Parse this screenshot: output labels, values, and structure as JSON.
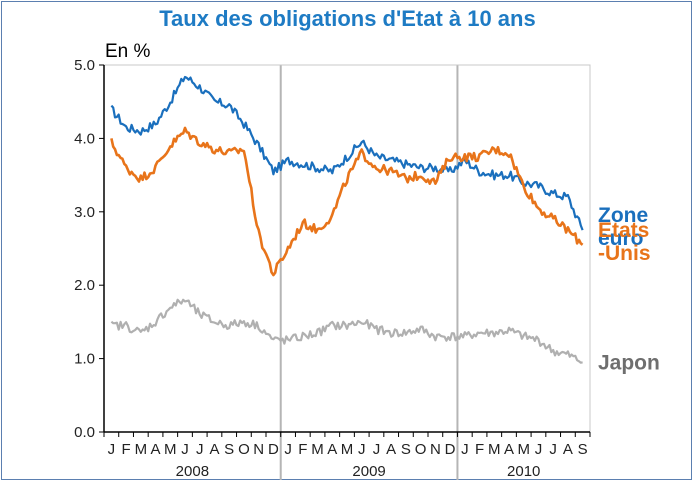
{
  "chart_data": {
    "type": "line",
    "title": "Taux des obligations d'Etat à 10 ans",
    "ylabel": "En %",
    "ylim": [
      0,
      5
    ],
    "yticks": [
      "0.0",
      "1.0",
      "2.0",
      "3.0",
      "4.0",
      "5.0"
    ],
    "grid": "vertical-year-separators",
    "month_labels": [
      "J",
      "F",
      "M",
      "A",
      "M",
      "J",
      "J",
      "A",
      "S",
      "O",
      "N",
      "D",
      "J",
      "F",
      "M",
      "A",
      "M",
      "J",
      "J",
      "A",
      "S",
      "O",
      "N",
      "D",
      "J",
      "F",
      "M",
      "A",
      "M",
      "J",
      "J",
      "A",
      "S"
    ],
    "year_labels": [
      "2008",
      "2009",
      "2010"
    ],
    "series": [
      {
        "name": "Zone euro",
        "label_lines": [
          "Zone",
          "euro"
        ],
        "color": "#1a6fbd",
        "values": [
          4.4,
          4.15,
          4.1,
          4.2,
          4.5,
          4.85,
          4.7,
          4.5,
          4.45,
          4.2,
          3.9,
          3.55,
          3.7,
          3.65,
          3.6,
          3.55,
          3.75,
          3.95,
          3.75,
          3.7,
          3.65,
          3.6,
          3.6,
          3.55,
          3.7,
          3.55,
          3.5,
          3.5,
          3.4,
          3.35,
          3.25,
          3.2,
          2.75
        ]
      },
      {
        "name": "Etats-Unis",
        "label_lines": [
          "Etats",
          "-Unis"
        ],
        "color": "#e8741a",
        "values": [
          3.95,
          3.6,
          3.45,
          3.6,
          3.9,
          4.1,
          3.95,
          3.85,
          3.8,
          3.85,
          2.7,
          2.15,
          2.5,
          2.85,
          2.75,
          2.95,
          3.45,
          3.8,
          3.6,
          3.55,
          3.45,
          3.5,
          3.4,
          3.75,
          3.75,
          3.75,
          3.85,
          3.8,
          3.35,
          3.05,
          2.9,
          2.75,
          2.55
        ]
      },
      {
        "name": "Japon",
        "label_lines": [
          "Japon"
        ],
        "color": "#b0b0b0",
        "label_color": "#6e6e6e",
        "values": [
          1.45,
          1.45,
          1.35,
          1.5,
          1.7,
          1.8,
          1.6,
          1.5,
          1.45,
          1.5,
          1.45,
          1.25,
          1.25,
          1.3,
          1.35,
          1.45,
          1.45,
          1.5,
          1.4,
          1.35,
          1.35,
          1.4,
          1.3,
          1.3,
          1.3,
          1.35,
          1.35,
          1.38,
          1.3,
          1.25,
          1.1,
          1.05,
          0.95
        ]
      }
    ]
  }
}
